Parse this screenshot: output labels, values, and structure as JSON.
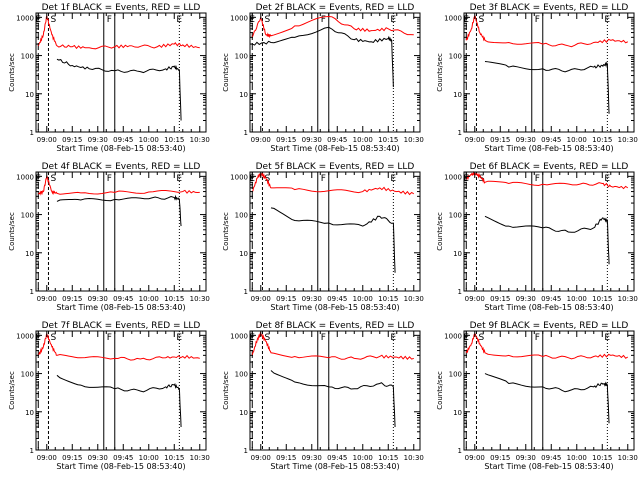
{
  "chart_data": [
    {
      "title": "Det 1f BLACK = Events, RED = LLD",
      "type": "line",
      "ylabel": "Counts/sec",
      "xlabel": "Start Time (08-Feb-15 08:53:40)",
      "xticks": [
        "09:00",
        "09:15",
        "09:30",
        "09:45",
        "10:00",
        "10:15",
        "10:30"
      ],
      "yticks": [
        "1",
        "10",
        "100",
        "1000"
      ],
      "y_scale": "log",
      "ylim": [
        1,
        1300
      ],
      "xlim": [
        "08:53:40",
        "10:33:40"
      ],
      "markers": {
        "E1": "08:55",
        "S": "09:01",
        "F": "09:40",
        "E2": "10:18"
      },
      "series": [
        {
          "name": "RED = LLD",
          "color": "#ff0000",
          "x": [
            "08:55",
            "08:58",
            "09:00",
            "09:03",
            "09:06",
            "09:15",
            "09:25",
            "09:40",
            "09:50",
            "10:05",
            "10:15",
            "10:20",
            "10:30"
          ],
          "y": [
            180,
            350,
            1100,
            350,
            180,
            170,
            160,
            170,
            180,
            170,
            200,
            190,
            160
          ]
        },
        {
          "name": "BLACK = Events",
          "color": "#000000",
          "x": [
            "09:06",
            "09:15",
            "09:25",
            "09:40",
            "09:55",
            "10:10",
            "10:15",
            "10:18",
            "10:19"
          ],
          "y": [
            80,
            55,
            45,
            40,
            38,
            45,
            50,
            42,
            2
          ]
        }
      ]
    },
    {
      "title": "Det 2f BLACK = Events, RED = LLD",
      "type": "line",
      "ylabel": "Counts/sec",
      "xlabel": "Start Time (08-Feb-15 08:53:40)",
      "xticks": [
        "09:00",
        "09:15",
        "09:30",
        "09:45",
        "10:00",
        "10:15",
        "10:30"
      ],
      "yticks": [
        "1",
        "10",
        "100",
        "1000"
      ],
      "y_scale": "log",
      "ylim": [
        1,
        1300
      ],
      "xlim": [
        "08:53:40",
        "10:33:40"
      ],
      "markers": {
        "E1": "08:55",
        "S": "09:01",
        "F": "09:40",
        "E2": "10:18"
      },
      "series": [
        {
          "name": "RED = LLD",
          "color": "#ff0000",
          "x": [
            "08:55",
            "09:00",
            "09:03",
            "09:06",
            "09:20",
            "09:40",
            "09:55",
            "10:05",
            "10:15",
            "10:30"
          ],
          "y": [
            300,
            1000,
            350,
            330,
            600,
            1050,
            500,
            450,
            500,
            350
          ]
        },
        {
          "name": "BLACK = Events",
          "color": "#000000",
          "x": [
            "08:55",
            "09:06",
            "09:20",
            "09:40",
            "09:55",
            "10:05",
            "10:15",
            "10:17",
            "10:18"
          ],
          "y": [
            200,
            220,
            300,
            550,
            260,
            230,
            280,
            250,
            15
          ]
        }
      ]
    },
    {
      "title": "Det 3f BLACK = Events, RED = LLD",
      "type": "line",
      "ylabel": "Counts/sec",
      "xlabel": "Start Time (08-Feb-15 08:53:40)",
      "xticks": [
        "09:00",
        "09:15",
        "09:30",
        "09:45",
        "10:00",
        "10:15",
        "10:30"
      ],
      "yticks": [
        "1",
        "10",
        "100",
        "1000"
      ],
      "y_scale": "log",
      "ylim": [
        1,
        1300
      ],
      "xlim": [
        "08:53:40",
        "10:33:40"
      ],
      "markers": {
        "E1": "08:55",
        "S": "09:01",
        "F": "09:40",
        "E2": "10:18"
      },
      "series": [
        {
          "name": "RED = LLD",
          "color": "#ff0000",
          "x": [
            "08:55",
            "08:58",
            "09:00",
            "09:03",
            "09:06",
            "09:20",
            "09:40",
            "09:55",
            "10:10",
            "10:20",
            "10:30"
          ],
          "y": [
            250,
            500,
            1100,
            400,
            250,
            220,
            200,
            180,
            220,
            250,
            230
          ]
        },
        {
          "name": "BLACK = Events",
          "color": "#000000",
          "x": [
            "09:06",
            "09:20",
            "09:40",
            "09:55",
            "10:10",
            "10:15",
            "10:18",
            "10:19"
          ],
          "y": [
            70,
            50,
            45,
            40,
            50,
            55,
            60,
            3
          ]
        }
      ]
    },
    {
      "title": "Det 4f BLACK = Events, RED = LLD",
      "type": "line",
      "ylabel": "Counts/sec",
      "xlabel": "Start Time (08-Feb-15 08:53:40)",
      "xticks": [
        "09:00",
        "09:15",
        "09:30",
        "09:45",
        "10:00",
        "10:15",
        "10:30"
      ],
      "yticks": [
        "1",
        "10",
        "100",
        "1000"
      ],
      "y_scale": "log",
      "ylim": [
        1,
        1300
      ],
      "xlim": [
        "08:53:40",
        "10:33:40"
      ],
      "markers": {
        "E1": "08:55",
        "S": "09:01",
        "F": "09:40",
        "E2": "10:18"
      },
      "series": [
        {
          "name": "RED = LLD",
          "color": "#ff0000",
          "x": [
            "08:55",
            "08:58",
            "09:00",
            "09:03",
            "09:06",
            "09:20",
            "09:40",
            "10:00",
            "10:20",
            "10:30"
          ],
          "y": [
            350,
            400,
            1000,
            400,
            360,
            370,
            380,
            390,
            400,
            380
          ]
        },
        {
          "name": "BLACK = Events",
          "color": "#000000",
          "x": [
            "09:06",
            "09:20",
            "09:40",
            "10:00",
            "10:15",
            "10:18",
            "10:19"
          ],
          "y": [
            220,
            240,
            250,
            260,
            280,
            250,
            50
          ]
        }
      ]
    },
    {
      "title": "Det 5f BLACK = Events, RED = LLD",
      "type": "line",
      "ylabel": "Counts/sec",
      "xlabel": "Start Time (08-Feb-15 08:53:40)",
      "xticks": [
        "09:00",
        "09:15",
        "09:30",
        "09:45",
        "10:00",
        "10:15",
        "10:30"
      ],
      "yticks": [
        "1",
        "10",
        "100",
        "1000"
      ],
      "y_scale": "log",
      "ylim": [
        1,
        1300
      ],
      "xlim": [
        "08:53:40",
        "10:33:40"
      ],
      "markers": {
        "E1": "08:55",
        "S": "09:01",
        "F": "09:40",
        "E2": "10:18"
      },
      "series": [
        {
          "name": "RED = LLD",
          "color": "#ff0000",
          "x": [
            "08:55",
            "08:58",
            "09:00",
            "09:03",
            "09:06",
            "09:20",
            "09:40",
            "10:00",
            "10:10",
            "10:20",
            "10:30"
          ],
          "y": [
            400,
            900,
            1200,
            900,
            500,
            450,
            420,
            400,
            500,
            400,
            350
          ]
        },
        {
          "name": "BLACK = Events",
          "color": "#000000",
          "x": [
            "09:06",
            "09:20",
            "09:40",
            "10:00",
            "10:10",
            "10:18",
            "10:19"
          ],
          "y": [
            150,
            70,
            60,
            50,
            90,
            60,
            3
          ]
        }
      ]
    },
    {
      "title": "Det 6f BLACK = Events, RED = LLD",
      "type": "line",
      "ylabel": "Counts/sec",
      "xlabel": "Start Time (08-Feb-15 08:53:40)",
      "xticks": [
        "09:00",
        "09:15",
        "09:30",
        "09:45",
        "10:00",
        "10:15",
        "10:30"
      ],
      "yticks": [
        "1",
        "10",
        "100",
        "1000"
      ],
      "y_scale": "log",
      "ylim": [
        1,
        1300
      ],
      "xlim": [
        "08:53:40",
        "10:33:40"
      ],
      "markers": {
        "E1": "08:55",
        "S": "09:01",
        "F": "09:40",
        "E2": "10:18"
      },
      "series": [
        {
          "name": "RED = LLD",
          "color": "#ff0000",
          "x": [
            "08:55",
            "08:58",
            "09:00",
            "09:03",
            "09:06",
            "09:20",
            "09:40",
            "10:00",
            "10:15",
            "10:20",
            "10:30"
          ],
          "y": [
            900,
            1100,
            1200,
            1000,
            700,
            650,
            620,
            600,
            650,
            550,
            500
          ]
        },
        {
          "name": "BLACK = Events",
          "color": "#000000",
          "x": [
            "09:06",
            "09:20",
            "09:40",
            "09:55",
            "10:10",
            "10:15",
            "10:18",
            "10:19"
          ],
          "y": [
            90,
            50,
            45,
            35,
            45,
            80,
            70,
            5
          ]
        }
      ]
    },
    {
      "title": "Det 7f BLACK = Events, RED = LLD",
      "type": "line",
      "ylabel": "Counts/sec",
      "xlabel": "Start Time (08-Feb-15 08:53:40)",
      "xticks": [
        "09:00",
        "09:15",
        "09:30",
        "09:45",
        "10:00",
        "10:15",
        "10:30"
      ],
      "yticks": [
        "1",
        "10",
        "100",
        "1000"
      ],
      "y_scale": "log",
      "ylim": [
        1,
        1300
      ],
      "xlim": [
        "08:53:40",
        "10:33:40"
      ],
      "markers": {
        "E1": "08:55",
        "S": "09:01",
        "F": "09:40",
        "E2": "10:18"
      },
      "series": [
        {
          "name": "RED = LLD",
          "color": "#ff0000",
          "x": [
            "08:55",
            "08:58",
            "09:00",
            "09:03",
            "09:06",
            "09:20",
            "09:40",
            "09:55",
            "10:10",
            "10:20",
            "10:30"
          ],
          "y": [
            300,
            500,
            1100,
            500,
            300,
            260,
            250,
            240,
            260,
            280,
            250
          ]
        },
        {
          "name": "BLACK = Events",
          "color": "#000000",
          "x": [
            "09:06",
            "09:20",
            "09:40",
            "09:55",
            "10:10",
            "10:15",
            "10:18",
            "10:19"
          ],
          "y": [
            90,
            50,
            40,
            35,
            45,
            50,
            40,
            4
          ]
        }
      ]
    },
    {
      "title": "Det 8f BLACK = Events, RED = LLD",
      "type": "line",
      "ylabel": "Counts/sec",
      "xlabel": "Start Time (08-Feb-15 08:53:40)",
      "xticks": [
        "09:00",
        "09:15",
        "09:30",
        "09:45",
        "10:00",
        "10:15",
        "10:30"
      ],
      "yticks": [
        "1",
        "10",
        "100",
        "1000"
      ],
      "y_scale": "log",
      "ylim": [
        1,
        1300
      ],
      "xlim": [
        "08:53:40",
        "10:33:40"
      ],
      "markers": {
        "E1": "08:55",
        "S": "09:01",
        "F": "09:40",
        "E2": "10:18"
      },
      "series": [
        {
          "name": "RED = LLD",
          "color": "#ff0000",
          "x": [
            "08:55",
            "08:58",
            "09:00",
            "09:03",
            "09:06",
            "09:20",
            "09:40",
            "09:55",
            "10:10",
            "10:20",
            "10:30"
          ],
          "y": [
            300,
            800,
            1100,
            700,
            350,
            280,
            260,
            250,
            280,
            270,
            250
          ]
        },
        {
          "name": "BLACK = Events",
          "color": "#000000",
          "x": [
            "09:06",
            "09:20",
            "09:40",
            "09:55",
            "10:10",
            "10:18",
            "10:19"
          ],
          "y": [
            120,
            60,
            45,
            40,
            55,
            45,
            4
          ]
        }
      ]
    },
    {
      "title": "Det 9f BLACK = Events, RED = LLD",
      "type": "line",
      "ylabel": "Counts/sec",
      "xlabel": "Start Time (08-Feb-15 08:53:40)",
      "xticks": [
        "09:00",
        "09:15",
        "09:30",
        "09:45",
        "10:00",
        "10:15",
        "10:30"
      ],
      "yticks": [
        "1",
        "10",
        "100",
        "1000"
      ],
      "y_scale": "log",
      "ylim": [
        1,
        1300
      ],
      "xlim": [
        "08:53:40",
        "10:33:40"
      ],
      "markers": {
        "E1": "08:55",
        "S": "09:01",
        "F": "09:40",
        "E2": "10:18"
      },
      "series": [
        {
          "name": "RED = LLD",
          "color": "#ff0000",
          "x": [
            "08:55",
            "08:58",
            "09:00",
            "09:03",
            "09:06",
            "09:20",
            "09:40",
            "09:55",
            "10:10",
            "10:20",
            "10:30"
          ],
          "y": [
            350,
            600,
            1100,
            600,
            350,
            300,
            280,
            260,
            280,
            300,
            270
          ]
        },
        {
          "name": "BLACK = Events",
          "color": "#000000",
          "x": [
            "09:06",
            "09:20",
            "09:40",
            "09:55",
            "10:10",
            "10:15",
            "10:18",
            "10:19"
          ],
          "y": [
            100,
            55,
            45,
            35,
            45,
            55,
            50,
            5
          ]
        }
      ]
    }
  ]
}
